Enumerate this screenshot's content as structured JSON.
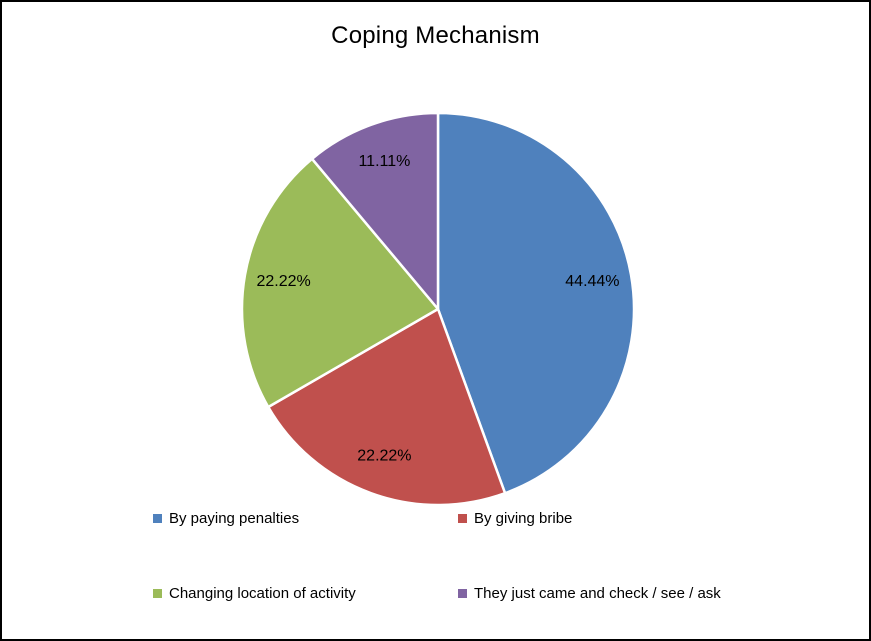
{
  "chart": {
    "title": "Coping Mechanism"
  },
  "chart_data": {
    "type": "pie",
    "title": "Coping Mechanism",
    "categories": [
      "By paying penalties",
      "By giving bribe",
      "Changing location of activity",
      "They just came and check / see / ask"
    ],
    "values": [
      44.44,
      22.22,
      22.22,
      11.11
    ],
    "data_labels": [
      "44.44%",
      "22.22%",
      "22.22%",
      "11.11%"
    ],
    "colors": [
      "#4F81BD",
      "#C0504D",
      "#9BBB59",
      "#8064A2"
    ],
    "slice_border_color": "#FFFFFF",
    "start_angle_deg": 0,
    "direction": "clockwise",
    "legend_position": "bottom",
    "label_radius_fraction": 0.8
  }
}
